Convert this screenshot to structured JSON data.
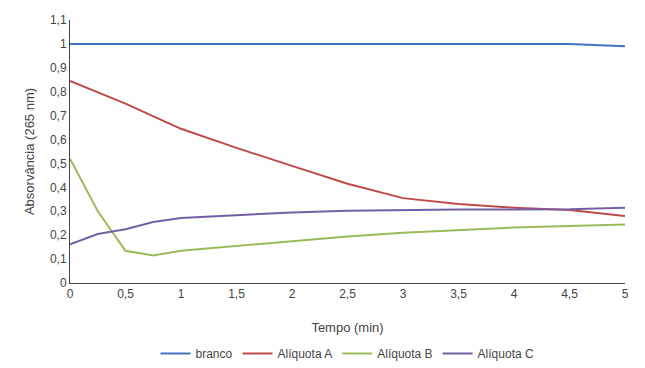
{
  "chart_data": {
    "type": "line",
    "xlabel": "Tempo (min)",
    "ylabel": "Absorvância (265 nm)",
    "series": [
      {
        "name": "branco",
        "color": "#4472C4",
        "x": [
          0,
          0.5,
          1,
          1.5,
          2,
          2.5,
          3,
          3.5,
          4,
          4.5,
          5
        ],
        "values": [
          1.0,
          1.0,
          1.0,
          1.0,
          1.0,
          1.0,
          1.0,
          1.0,
          1.0,
          1.0,
          0.99
        ]
      },
      {
        "name": "Alíquota A",
        "color": "#BE4B48",
        "x": [
          0,
          0.5,
          1,
          1.5,
          2,
          2.5,
          3,
          3.5,
          4,
          4.5,
          5
        ],
        "values": [
          0.845,
          0.75,
          0.645,
          0.565,
          0.49,
          0.415,
          0.355,
          0.33,
          0.315,
          0.305,
          0.28
        ]
      },
      {
        "name": "Alíquota B",
        "color": "#9BBB59",
        "x": [
          0,
          0.25,
          0.5,
          0.75,
          1,
          1.5,
          2,
          2.5,
          3,
          3.5,
          4,
          4.5,
          5
        ],
        "values": [
          0.52,
          0.3,
          0.135,
          0.115,
          0.135,
          0.155,
          0.175,
          0.195,
          0.21,
          0.22,
          0.232,
          0.238,
          0.245
        ]
      },
      {
        "name": "Alíquota C",
        "color": "#7560A8",
        "x": [
          0,
          0.25,
          0.5,
          0.75,
          1,
          1.5,
          2,
          2.5,
          3,
          3.5,
          4,
          4.5,
          5
        ],
        "values": [
          0.162,
          0.205,
          0.225,
          0.255,
          0.272,
          0.285,
          0.295,
          0.302,
          0.305,
          0.307,
          0.307,
          0.308,
          0.315
        ]
      }
    ],
    "xlim": [
      0,
      5
    ],
    "ylim": [
      0,
      1.1
    ],
    "xticks": [
      0,
      {
        "value": 0.5,
        "label": "0,5"
      },
      1,
      {
        "value": 1.5,
        "label": "1,5"
      },
      2,
      {
        "value": 2.5,
        "label": "2,5"
      },
      3,
      {
        "value": 3.5,
        "label": "3,5"
      },
      4,
      {
        "value": 4.5,
        "label": "4,5"
      },
      5
    ],
    "yticks": [
      0,
      {
        "value": 0.1,
        "label": "0,1"
      },
      {
        "value": 0.2,
        "label": "0,2"
      },
      {
        "value": 0.3,
        "label": "0,3"
      },
      {
        "value": 0.4,
        "label": "0,4"
      },
      {
        "value": 0.5,
        "label": "0,5"
      },
      {
        "value": 0.6,
        "label": "0,6"
      },
      {
        "value": 0.7,
        "label": "0,7"
      },
      {
        "value": 0.8,
        "label": "0,8"
      },
      {
        "value": 0.9,
        "label": "0,9"
      },
      1,
      {
        "value": 1.1,
        "label": "1,1"
      }
    ],
    "grid": false,
    "legend": "bottom"
  }
}
